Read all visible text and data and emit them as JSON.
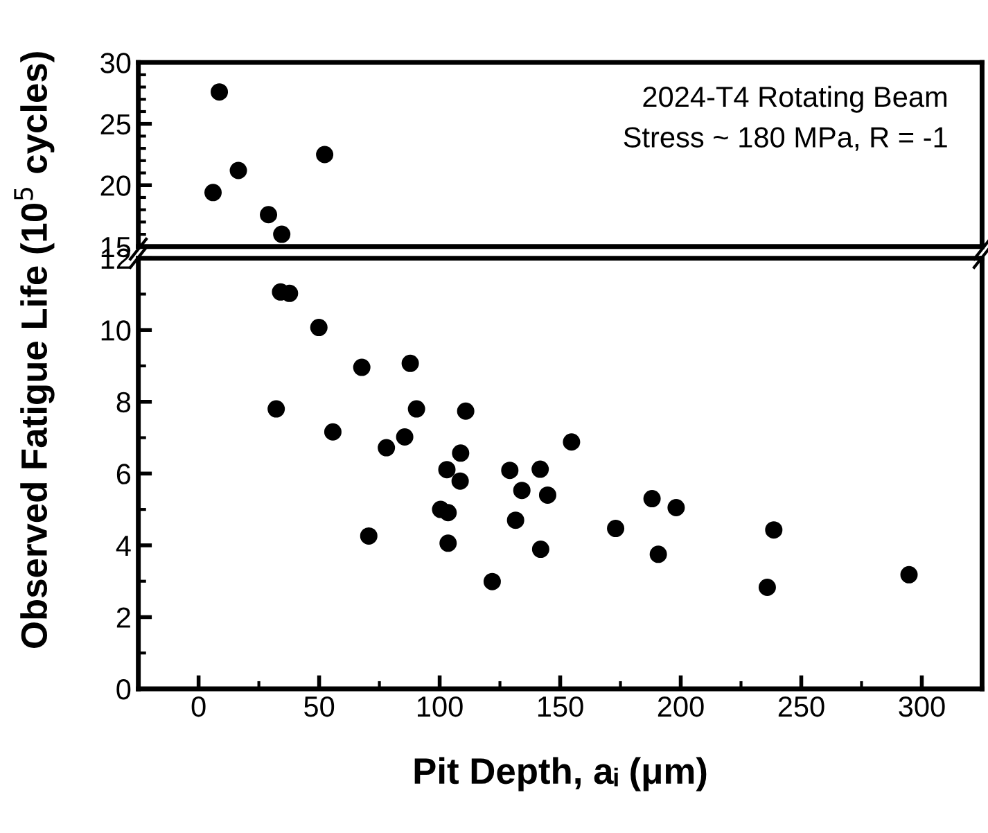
{
  "chart_data": [
    {
      "type": "scatter",
      "marker": "circle",
      "grid": false,
      "tick_labels": "y",
      "xlim": [
        -25,
        325
      ],
      "ylim": [
        15,
        30
      ],
      "yticks": [
        15,
        20,
        25,
        30
      ],
      "annotations": [
        "2024-T4 Rotating Beam",
        "Stress ~ 180 MPa, R = -1"
      ],
      "series": [
        {
          "color": "#000000",
          "x": [
            8.6,
            6.0,
            16.5,
            52.3,
            29.0,
            34.5
          ],
          "values": [
            27.6,
            19.4,
            21.2,
            22.5,
            17.6,
            16.0
          ]
        }
      ]
    },
    {
      "type": "scatter",
      "marker": "circle",
      "grid": false,
      "xlim": [
        -25,
        325
      ],
      "ylim": [
        0,
        12
      ],
      "xticks": [
        0,
        50,
        100,
        150,
        200,
        250,
        300
      ],
      "yticks": [
        0,
        2,
        4,
        6,
        8,
        10,
        12
      ],
      "xlabel": "Pit Depth, aᵢ (μm)",
      "ylabel": "Observed Fatigue Life (10$^{5}$ cycles)",
      "series": [
        {
          "color": "#000000",
          "x": [
            34.0,
            37.7,
            49.9,
            67.7,
            87.8,
            32.2,
            90.4,
            110.8,
            55.7,
            77.9,
            85.5,
            154.7,
            108.7,
            103.0,
            108.5,
            129.1,
            141.7,
            134.1,
            144.8,
            100.4,
            103.5,
            131.5,
            70.6,
            103.5,
            141.9,
            173.0,
            188.1,
            198.1,
            190.7,
            238.6,
            121.8,
            235.9,
            294.7
          ],
          "values": [
            11.06,
            11.02,
            10.07,
            8.96,
            9.07,
            7.8,
            7.8,
            7.74,
            7.16,
            6.72,
            7.02,
            6.88,
            6.57,
            6.11,
            5.79,
            6.09,
            6.12,
            5.53,
            5.4,
            5.0,
            4.91,
            4.7,
            4.26,
            4.06,
            3.89,
            4.47,
            5.3,
            5.05,
            3.75,
            4.43,
            2.99,
            2.83,
            3.18
          ]
        }
      ]
    }
  ]
}
